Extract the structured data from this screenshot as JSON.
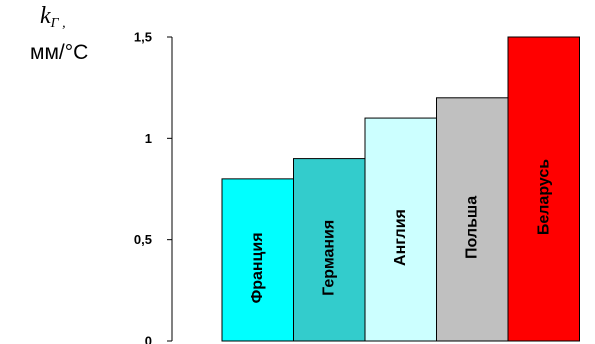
{
  "chart_data": {
    "type": "bar",
    "title": "",
    "ylabel_symbol": "k",
    "ylabel_subscript": "Г ,",
    "ylabel_unit": "мм/°С",
    "xlabel": "",
    "ylim": [
      0,
      1.5
    ],
    "yticks": [
      {
        "value": 0,
        "label": "0"
      },
      {
        "value": 0.5,
        "label": "0,5"
      },
      {
        "value": 1,
        "label": "1"
      },
      {
        "value": 1.5,
        "label": "1,5"
      }
    ],
    "grid": false,
    "categories": [
      "Франция",
      "Германия",
      "Англия",
      "Польша",
      "Беларусь"
    ],
    "values": [
      0.8,
      0.9,
      1.1,
      1.2,
      1.5
    ],
    "colors": [
      "#00FFFF",
      "#33CCCC",
      "#CCFFFF",
      "#C0C0C0",
      "#FF0000"
    ],
    "edge_color": "#000000"
  }
}
